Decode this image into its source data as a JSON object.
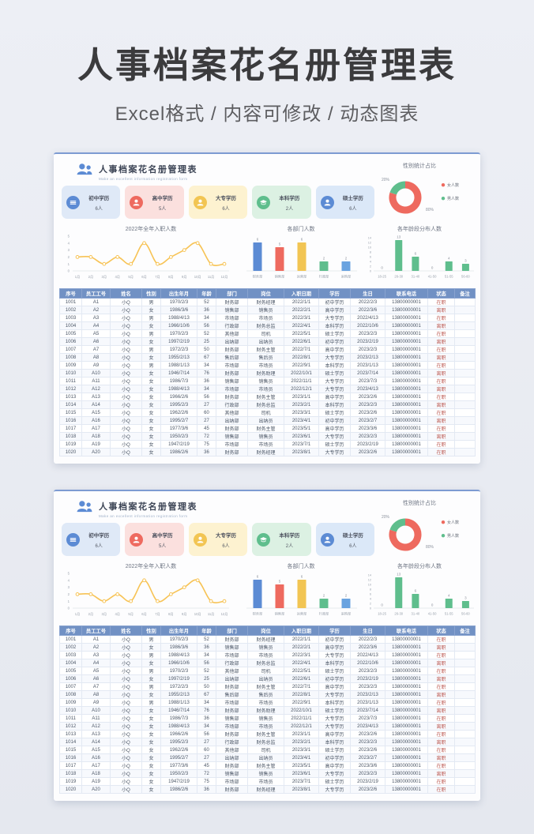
{
  "page": {
    "title": "人事档案花名册管理表",
    "subtitle": "Excel格式 / 内容可修改 / 动态图表"
  },
  "panel": {
    "title": "人事档案花名册管理表",
    "subtitle_en": "Make an excellent information registration form",
    "stat_cards": [
      {
        "label": "初中学历",
        "count": "6人",
        "icon": "layers-icon",
        "bg": "#dfe9f7",
        "icon_bg": "#5c8bd4"
      },
      {
        "label": "高中学历",
        "count": "5人",
        "icon": "person-icon",
        "bg": "#fbe0de",
        "icon_bg": "#ee6a5f"
      },
      {
        "label": "大专学历",
        "count": "6人",
        "icon": "person-icon",
        "bg": "#fdf2d0",
        "icon_bg": "#f2c553"
      },
      {
        "label": "本科学历",
        "count": "2人",
        "icon": "graduation-cap-icon",
        "bg": "#dcf1e3",
        "icon_bg": "#5fbe8d"
      },
      {
        "label": "硕士学历",
        "count": "6人",
        "icon": "person-icon",
        "bg": "#dbe8f8",
        "icon_bg": "#5c8bd4"
      }
    ],
    "table": {
      "headers": [
        "序号",
        "员工工号",
        "姓名",
        "性别",
        "出生年月",
        "年龄",
        "部门",
        "岗位",
        "入职日期",
        "学历",
        "生日",
        "联系电话",
        "状态",
        "备注"
      ],
      "rows": [
        [
          "1001",
          "A1",
          "小Q",
          "男",
          "1970/2/3",
          "52",
          "财务部",
          "财务经理",
          "2022/1/1",
          "初中学历",
          "2022/2/3",
          "13800000001",
          "在职",
          ""
        ],
        [
          "1002",
          "A2",
          "小Q",
          "女",
          "1986/3/6",
          "36",
          "销售部",
          "销售员",
          "2022/2/1",
          "高中学历",
          "2022/3/6",
          "13800000001",
          "离职",
          ""
        ],
        [
          "1003",
          "A3",
          "小Q",
          "男",
          "1988/4/13",
          "34",
          "市场部",
          "市场员",
          "2022/3/1",
          "大专学历",
          "2022/4/13",
          "13800000001",
          "在职",
          ""
        ],
        [
          "1004",
          "A4",
          "小Q",
          "女",
          "1966/10/6",
          "56",
          "行政部",
          "财务总监",
          "2022/4/1",
          "本科学历",
          "2022/10/6",
          "13800000001",
          "离职",
          ""
        ],
        [
          "1005",
          "A5",
          "小Q",
          "男",
          "1970/2/3",
          "52",
          "其他部",
          "司机",
          "2022/5/1",
          "硕士学历",
          "2023/2/3",
          "13800000001",
          "在职",
          ""
        ],
        [
          "1006",
          "A6",
          "小Q",
          "女",
          "1997/2/19",
          "25",
          "出纳部",
          "出纳员",
          "2022/6/1",
          "初中学历",
          "2023/2/19",
          "13800000001",
          "离职",
          ""
        ],
        [
          "1007",
          "A7",
          "小Q",
          "男",
          "1972/2/3",
          "50",
          "财务部",
          "财务主管",
          "2022/7/1",
          "高中学历",
          "2023/2/3",
          "13800000001",
          "在职",
          ""
        ],
        [
          "1008",
          "A8",
          "小Q",
          "女",
          "1955/2/13",
          "67",
          "售后部",
          "售后员",
          "2022/8/1",
          "大专学历",
          "2023/2/13",
          "13800000001",
          "离职",
          ""
        ],
        [
          "1009",
          "A9",
          "小Q",
          "男",
          "1988/1/13",
          "34",
          "市场部",
          "市场员",
          "2022/9/1",
          "本科学历",
          "2023/1/13",
          "13800000001",
          "在职",
          ""
        ],
        [
          "1010",
          "A10",
          "小Q",
          "女",
          "1946/7/14",
          "76",
          "财务部",
          "财务助理",
          "2022/10/1",
          "硕士学历",
          "2023/7/14",
          "13800000001",
          "离职",
          ""
        ],
        [
          "1011",
          "A11",
          "小Q",
          "女",
          "1986/7/3",
          "36",
          "销售部",
          "销售员",
          "2022/11/1",
          "大专学历",
          "2023/7/3",
          "13800000001",
          "在职",
          ""
        ],
        [
          "1012",
          "A12",
          "小Q",
          "女",
          "1988/4/13",
          "34",
          "市场部",
          "市场员",
          "2022/12/1",
          "大专学历",
          "2023/4/13",
          "13800000001",
          "离职",
          ""
        ],
        [
          "1013",
          "A13",
          "小Q",
          "女",
          "1966/2/6",
          "56",
          "财务部",
          "财务主管",
          "2023/1/1",
          "高中学历",
          "2023/2/6",
          "13800000001",
          "在职",
          ""
        ],
        [
          "1014",
          "A14",
          "小Q",
          "女",
          "1995/2/3",
          "27",
          "行政部",
          "财务总监",
          "2023/2/1",
          "本科学历",
          "2023/2/3",
          "13800000001",
          "离职",
          ""
        ],
        [
          "1015",
          "A15",
          "小Q",
          "女",
          "1962/2/6",
          "60",
          "其他部",
          "司机",
          "2023/3/1",
          "硕士学历",
          "2023/2/6",
          "13800000001",
          "在职",
          ""
        ],
        [
          "1016",
          "A16",
          "小Q",
          "女",
          "1995/2/7",
          "27",
          "出纳部",
          "出纳员",
          "2023/4/1",
          "初中学历",
          "2023/2/7",
          "13800000001",
          "离职",
          ""
        ],
        [
          "1017",
          "A17",
          "小Q",
          "女",
          "1977/3/6",
          "45",
          "财务部",
          "财务主管",
          "2023/5/1",
          "高中学历",
          "2023/3/6",
          "13800000001",
          "在职",
          ""
        ],
        [
          "1018",
          "A18",
          "小Q",
          "女",
          "1950/2/3",
          "72",
          "销售部",
          "销售员",
          "2023/6/1",
          "大专学历",
          "2023/2/3",
          "13800000001",
          "离职",
          ""
        ],
        [
          "1019",
          "A19",
          "小Q",
          "女",
          "1947/2/19",
          "75",
          "市场部",
          "市场员",
          "2023/7/1",
          "硕士学历",
          "2023/2/19",
          "13800000001",
          "在职",
          ""
        ],
        [
          "1020",
          "A20",
          "小Q",
          "女",
          "1986/2/6",
          "36",
          "财务部",
          "财务经理",
          "2023/8/1",
          "大专学历",
          "2023/2/6",
          "13800000001",
          "在职",
          ""
        ]
      ]
    }
  },
  "chart_data": [
    {
      "type": "line",
      "title": "2022年全年入职人数",
      "categories": [
        "1月",
        "2月",
        "3月",
        "4月",
        "5月",
        "6月",
        "7月",
        "8月",
        "9月",
        "10月",
        "11月",
        "12月"
      ],
      "values": [
        2,
        2,
        1,
        2,
        1,
        4,
        1,
        2,
        3,
        4,
        1,
        1
      ],
      "ylim": [
        0,
        5
      ],
      "yticks": [
        0,
        1,
        2,
        3,
        4,
        5
      ],
      "color": "#f7c355",
      "grid": false,
      "legend_position": "none"
    },
    {
      "type": "bar",
      "title": "各部门人数",
      "categories": [
        "财务部",
        "销售部",
        "运营部",
        "行政部",
        "采购部"
      ],
      "values": [
        6,
        5,
        6,
        2,
        2
      ],
      "colors": [
        "#5c8bd4",
        "#ee6a5f",
        "#f2c553",
        "#5fbe8d",
        "#6aa3e0"
      ],
      "ylim": [
        0,
        7
      ],
      "grid": false,
      "legend_position": "none"
    },
    {
      "type": "bar",
      "title": "各年龄段分布人数",
      "categories": [
        "18-25",
        "26-30",
        "31-40",
        "41-50",
        "51-55",
        "56-60"
      ],
      "values": [
        0,
        13,
        6,
        0,
        4,
        3
      ],
      "color": "#5fbe8d",
      "ylim": [
        0,
        14
      ],
      "yticks": [
        0,
        2,
        4,
        6,
        8,
        10,
        12,
        14
      ],
      "grid": false,
      "legend_position": "none"
    },
    {
      "type": "pie",
      "title": "性别统计占比",
      "slices": [
        {
          "label": "女人数",
          "value": 80,
          "pct_label": "80%",
          "color": "#ee6a5f"
        },
        {
          "label": "男人数",
          "value": 20,
          "pct_label": "20%",
          "color": "#5fbe8d"
        }
      ],
      "legend_position": "right"
    }
  ],
  "colors": {
    "table_header_bg": "#7191c4",
    "status_text": "#bd5a52",
    "panel_top_border": "#7d9bd2"
  }
}
